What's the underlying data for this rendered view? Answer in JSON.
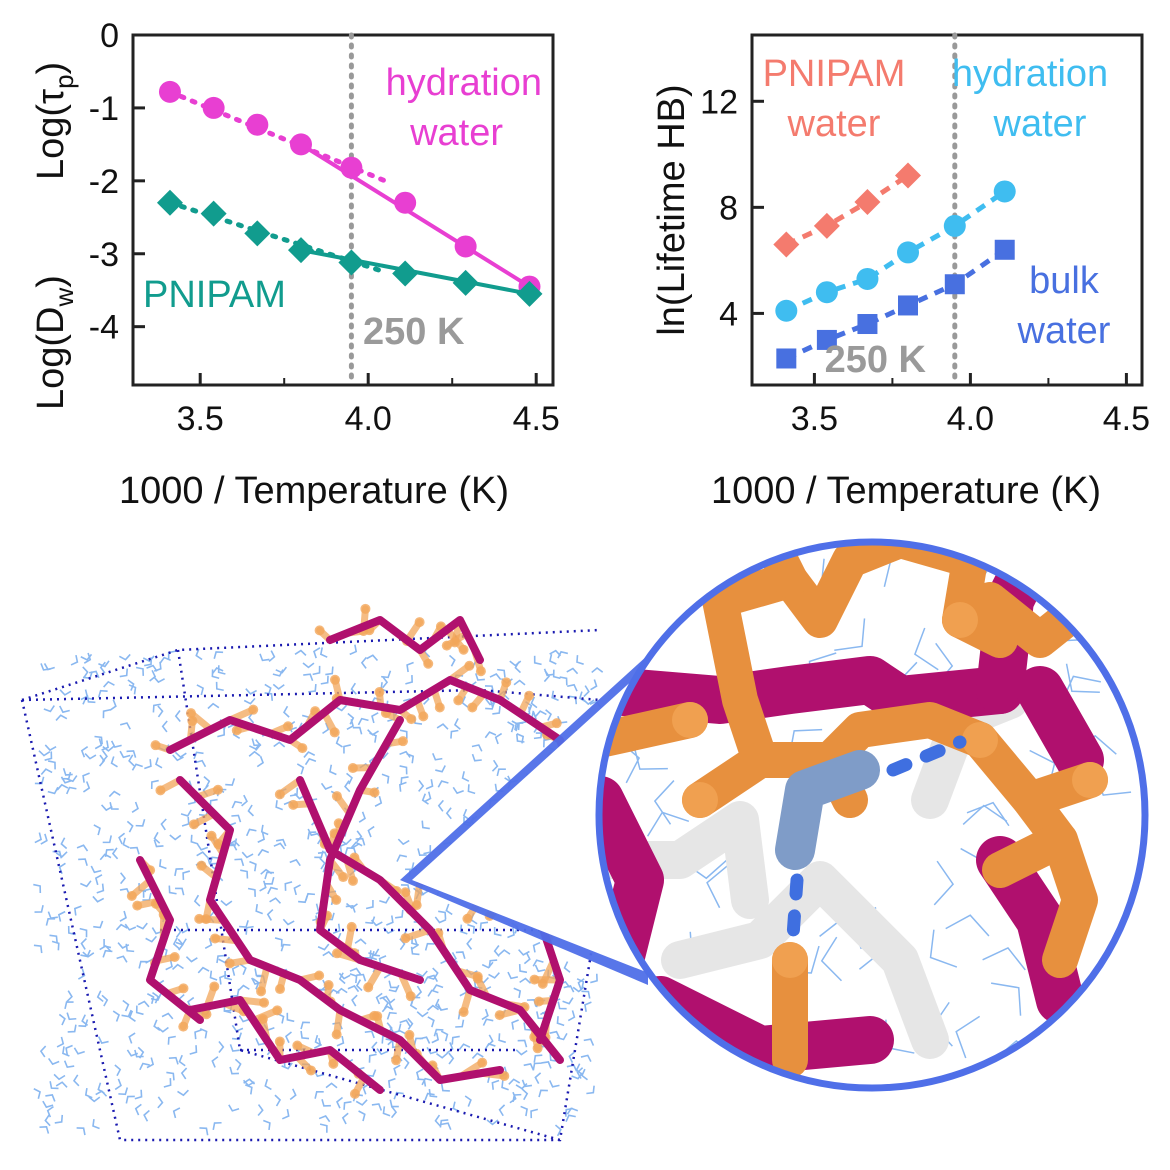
{
  "chart_data": [
    {
      "type": "line",
      "xlabel": "1000 / Temperature (K)",
      "ylabel_top": "Log(τ",
      "ylabel_top_sub": "p",
      "ylabel_bottom": "Log(D",
      "ylabel_bottom_sub": "w",
      "xlim": [
        3.3,
        4.55
      ],
      "ylim": [
        -4.8,
        0
      ],
      "xticks": [
        "3.5",
        "4.0",
        "4.5"
      ],
      "yticks": [
        "0",
        "-1",
        "-2",
        "-3",
        "-4"
      ],
      "vline_x": 3.95,
      "vline_label": "250 K",
      "series": [
        {
          "name_lines": [
            "hydration",
            "water"
          ],
          "color": "#e83fd2",
          "marker": "circle",
          "x": [
            3.41,
            3.54,
            3.67,
            3.8,
            3.95,
            4.11,
            4.29,
            4.48
          ],
          "y": [
            -0.78,
            -1.0,
            -1.23,
            -1.5,
            -1.82,
            -2.3,
            -2.9,
            -3.45
          ],
          "fit_low": [
            [
              3.41,
              -0.78
            ],
            [
              4.05,
              -2.0
            ]
          ],
          "fit_high": [
            [
              3.8,
              -1.5
            ],
            [
              4.48,
              -3.45
            ]
          ]
        },
        {
          "name_lines": [
            "PNIPAM"
          ],
          "color": "#119c8e",
          "marker": "diamond",
          "x": [
            3.41,
            3.54,
            3.67,
            3.8,
            3.95,
            4.11,
            4.29,
            4.48
          ],
          "y": [
            -2.3,
            -2.45,
            -2.72,
            -2.95,
            -3.12,
            -3.27,
            -3.4,
            -3.55
          ],
          "fit_low": [
            [
              3.41,
              -2.3
            ],
            [
              4.05,
              -3.25
            ]
          ],
          "fit_high": [
            [
              3.8,
              -2.95
            ],
            [
              4.48,
              -3.55
            ]
          ]
        }
      ]
    },
    {
      "type": "line",
      "xlabel": "1000 / Temperature (K)",
      "ylabel": "ln(Lifetime HB)",
      "xlim": [
        3.3,
        4.55
      ],
      "ylim": [
        1.3,
        14.5
      ],
      "xticks": [
        "3.5",
        "4.0",
        "4.5"
      ],
      "yticks": [
        "4",
        "8",
        "12"
      ],
      "vline_x": 3.95,
      "vline_label": "250 K",
      "series": [
        {
          "name_lines": [
            "PNIPAM",
            "water"
          ],
          "color": "#f47b6e",
          "marker": "diamond",
          "x": [
            3.41,
            3.54,
            3.67,
            3.8
          ],
          "y": [
            6.6,
            7.3,
            8.2,
            9.2
          ]
        },
        {
          "name_lines": [
            "hydration",
            "water"
          ],
          "color": "#3fbdf0",
          "marker": "circle",
          "x": [
            3.41,
            3.54,
            3.67,
            3.8,
            3.95,
            4.11
          ],
          "y": [
            4.1,
            4.8,
            5.3,
            6.3,
            7.3,
            8.6
          ]
        },
        {
          "name_lines": [
            "bulk",
            "water"
          ],
          "color": "#4870e0",
          "marker": "square",
          "x": [
            3.41,
            3.54,
            3.67,
            3.8,
            3.95,
            4.11
          ],
          "y": [
            2.3,
            3.0,
            3.6,
            4.3,
            5.1,
            6.4
          ]
        }
      ]
    }
  ],
  "illustration": {
    "polymer_color": "#b0106e",
    "sidechain_color": "#f2a65a",
    "water_color": "#8ab8f0",
    "box_color": "#1a1ab0",
    "zoom_ring_color": "#4f6fe8",
    "zoom_water_color": "#7f9cc8",
    "hbond_color": "#3f6fe0"
  }
}
